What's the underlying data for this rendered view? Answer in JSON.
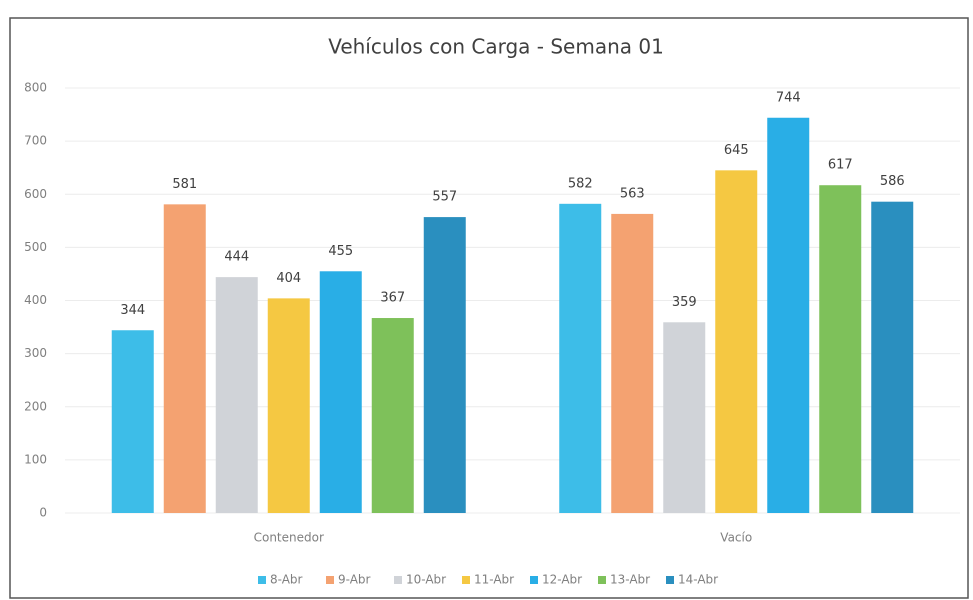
{
  "chart_data": {
    "type": "bar",
    "title": "Vehículos con Carga - Semana 01",
    "categories": [
      "Contenedor",
      "Vacío"
    ],
    "series": [
      {
        "name": "8-Abr",
        "color": "#3dbde8",
        "values": [
          344,
          582
        ]
      },
      {
        "name": "9-Abr",
        "color": "#f4a271",
        "values": [
          581,
          563
        ]
      },
      {
        "name": "10-Abr",
        "color": "#d0d3d8",
        "values": [
          444,
          359
        ]
      },
      {
        "name": "11-Abr",
        "color": "#f5c842",
        "values": [
          404,
          645
        ]
      },
      {
        "name": "12-Abr",
        "color": "#29aee6",
        "values": [
          455,
          744
        ]
      },
      {
        "name": "13-Abr",
        "color": "#7ec15a",
        "values": [
          367,
          617
        ]
      },
      {
        "name": "14-Abr",
        "color": "#2a8fbf",
        "values": [
          557,
          586
        ]
      }
    ],
    "ylim": [
      0,
      800
    ],
    "yticks": [
      0,
      100,
      200,
      300,
      400,
      500,
      600,
      700,
      800
    ],
    "grid": true,
    "legend": "bottom"
  }
}
